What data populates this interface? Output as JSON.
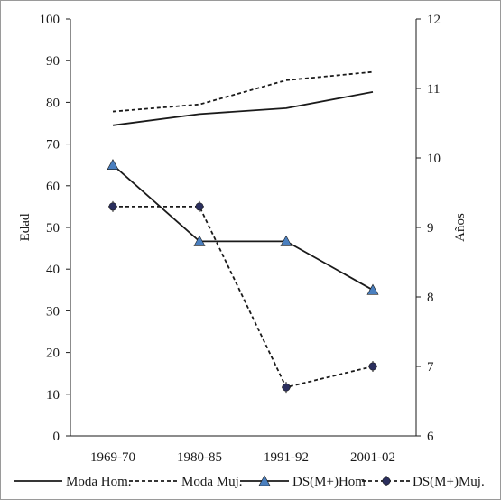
{
  "chart_data": {
    "type": "line",
    "categories": [
      "1969-70",
      "1980-85",
      "1991-92",
      "2001-02"
    ],
    "ylabel_left": "Edad",
    "ylabel_right": "Años",
    "ylim_left": [
      0,
      100
    ],
    "yticks_left": [
      0,
      10,
      20,
      30,
      40,
      50,
      60,
      70,
      80,
      90,
      100
    ],
    "ylim_right": [
      6,
      12
    ],
    "yticks_right": [
      6,
      7,
      8,
      9,
      10,
      11,
      12
    ],
    "grid": false,
    "legend_position": "bottom",
    "series": [
      {
        "name": "Moda Hom.",
        "axis": "left",
        "values": [
          74.5,
          77.2,
          78.6,
          82.5
        ],
        "line": "solid",
        "marker": "none",
        "color": "#1a1a1a"
      },
      {
        "name": "Moda Muj.",
        "axis": "left",
        "values": [
          77.8,
          79.5,
          85.3,
          87.3
        ],
        "line": "dashed",
        "marker": "none",
        "color": "#1a1a1a"
      },
      {
        "name": "DS(M+)Hom",
        "axis": "right",
        "values": [
          9.9,
          8.8,
          8.8,
          8.1
        ],
        "line": "solid",
        "marker": "triangle",
        "color": "#1a1a1a",
        "marker_color": "#4a7fbf"
      },
      {
        "name": "DS(M+)Muj.",
        "axis": "right",
        "values": [
          9.3,
          9.3,
          6.7,
          7.0
        ],
        "line": "dashed",
        "marker": "circle",
        "color": "#1a1a1a",
        "marker_color": "#2b2f5e"
      }
    ]
  }
}
